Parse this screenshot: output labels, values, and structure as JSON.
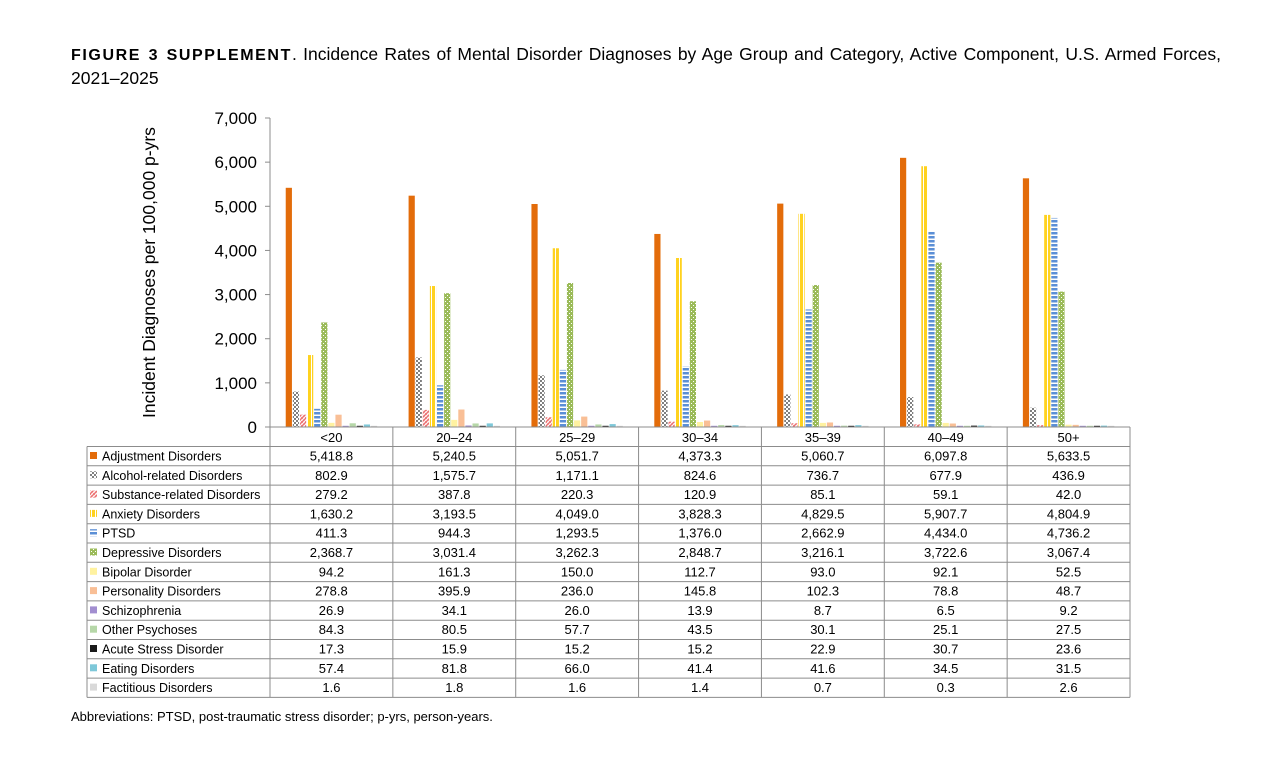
{
  "figure": {
    "label": "FIGURE 3 SUPPLEMENT",
    "title": "Incidence Rates of Mental Disorder Diagnoses by Age Group and Category, Active Component, U.S. Armed Forces, 2021–2025",
    "footnote": "Abbreviations: PTSD, post-traumatic stress disorder; p-yrs, person-years."
  },
  "chart_data": {
    "type": "bar",
    "title": "",
    "xlabel": "",
    "ylabel": "Incident Diagnoses per 100,000 p-yrs",
    "ylim": [
      0,
      7000
    ],
    "yticks": [
      0,
      1000,
      2000,
      3000,
      4000,
      5000,
      6000,
      7000
    ],
    "ytick_labels": [
      "0",
      "1,000",
      "2,000",
      "3,000",
      "4,000",
      "5,000",
      "6,000",
      "7,000"
    ],
    "legend": "data-table",
    "grid": false,
    "categories": [
      "<20",
      "20–24",
      "25–29",
      "30–34",
      "35–39",
      "40–49",
      "50+"
    ],
    "series": [
      {
        "name": "Adjustment Disorders",
        "color": "#e36c0a",
        "pattern": "solid",
        "values": [
          5418.8,
          5240.5,
          5051.7,
          4373.3,
          5060.7,
          6097.8,
          5633.5
        ],
        "labels": [
          "5,418.8",
          "5,240.5",
          "5,051.7",
          "4,373.3",
          "5,060.7",
          "6,097.8",
          "5,633.5"
        ]
      },
      {
        "name": "Alcohol-related Disorders",
        "color": "#7f7f7f",
        "pattern": "check",
        "values": [
          802.9,
          1575.7,
          1171.1,
          824.6,
          736.7,
          677.9,
          436.9
        ],
        "labels": [
          "802.9",
          "1,575.7",
          "1,171.1",
          "824.6",
          "736.7",
          "677.9",
          "436.9"
        ]
      },
      {
        "name": "Substance-related Disorders",
        "color": "#ec6f6f",
        "pattern": "diag",
        "values": [
          279.2,
          387.8,
          220.3,
          120.9,
          85.1,
          59.1,
          42.0
        ],
        "labels": [
          "279.2",
          "387.8",
          "220.3",
          "120.9",
          "85.1",
          "59.1",
          "42.0"
        ]
      },
      {
        "name": "Anxiety Disorders",
        "color": "#ffd21f",
        "pattern": "vstripe",
        "values": [
          1630.2,
          3193.5,
          4049.0,
          3828.3,
          4829.5,
          5907.7,
          4804.9
        ],
        "labels": [
          "1,630.2",
          "3,193.5",
          "4,049.0",
          "3,828.3",
          "4,829.5",
          "5,907.7",
          "4,804.9"
        ]
      },
      {
        "name": "PTSD",
        "color": "#5b8fd6",
        "pattern": "hstripe",
        "values": [
          411.3,
          944.3,
          1293.5,
          1376.0,
          2662.9,
          4434.0,
          4736.2
        ],
        "labels": [
          "411.3",
          "944.3",
          "1,293.5",
          "1,376.0",
          "2,662.9",
          "4,434.0",
          "4,736.2"
        ]
      },
      {
        "name": "Depressive Disorders",
        "color": "#9bbb59",
        "pattern": "dots",
        "values": [
          2368.7,
          3031.4,
          3262.3,
          2848.7,
          3216.1,
          3722.6,
          3067.4
        ],
        "labels": [
          "2,368.7",
          "3,031.4",
          "3,262.3",
          "2,848.7",
          "3,216.1",
          "3,722.6",
          "3,067.4"
        ]
      },
      {
        "name": "Bipolar Disorder",
        "color": "#fff2a0",
        "pattern": "solid",
        "values": [
          94.2,
          161.3,
          150.0,
          112.7,
          93.0,
          92.1,
          52.5
        ],
        "labels": [
          "94.2",
          "161.3",
          "150.0",
          "112.7",
          "93.0",
          "92.1",
          "52.5"
        ]
      },
      {
        "name": "Personality Disorders",
        "color": "#f9bf96",
        "pattern": "solid",
        "values": [
          278.8,
          395.9,
          236.0,
          145.8,
          102.3,
          78.8,
          48.7
        ],
        "labels": [
          "278.8",
          "395.9",
          "236.0",
          "145.8",
          "102.3",
          "78.8",
          "48.7"
        ]
      },
      {
        "name": "Schizophrenia",
        "color": "#a28ed0",
        "pattern": "solid",
        "values": [
          26.9,
          34.1,
          26.0,
          13.9,
          8.7,
          6.5,
          9.2
        ],
        "labels": [
          "26.9",
          "34.1",
          "26.0",
          "13.9",
          "8.7",
          "6.5",
          "9.2"
        ]
      },
      {
        "name": "Other Psychoses",
        "color": "#b6d7a8",
        "pattern": "solid",
        "values": [
          84.3,
          80.5,
          57.7,
          43.5,
          30.1,
          25.1,
          27.5
        ],
        "labels": [
          "84.3",
          "80.5",
          "57.7",
          "43.5",
          "30.1",
          "25.1",
          "27.5"
        ]
      },
      {
        "name": "Acute Stress Disorder",
        "color": "#1a1a1a",
        "pattern": "solid",
        "values": [
          17.3,
          15.9,
          15.2,
          15.2,
          22.9,
          30.7,
          23.6
        ],
        "labels": [
          "17.3",
          "15.9",
          "15.2",
          "15.2",
          "22.9",
          "30.7",
          "23.6"
        ]
      },
      {
        "name": "Eating Disorders",
        "color": "#7ec8d9",
        "pattern": "solid",
        "values": [
          57.4,
          81.8,
          66.0,
          41.4,
          41.6,
          34.5,
          31.5
        ],
        "labels": [
          "57.4",
          "81.8",
          "66.0",
          "41.4",
          "41.6",
          "34.5",
          "31.5"
        ]
      },
      {
        "name": "Factitious Disorders",
        "color": "#d9d9d9",
        "pattern": "solid",
        "values": [
          1.6,
          1.8,
          1.6,
          1.4,
          0.7,
          0.3,
          2.6
        ],
        "labels": [
          "1.6",
          "1.8",
          "1.6",
          "1.4",
          "0.7",
          "0.3",
          "2.6"
        ]
      }
    ]
  }
}
